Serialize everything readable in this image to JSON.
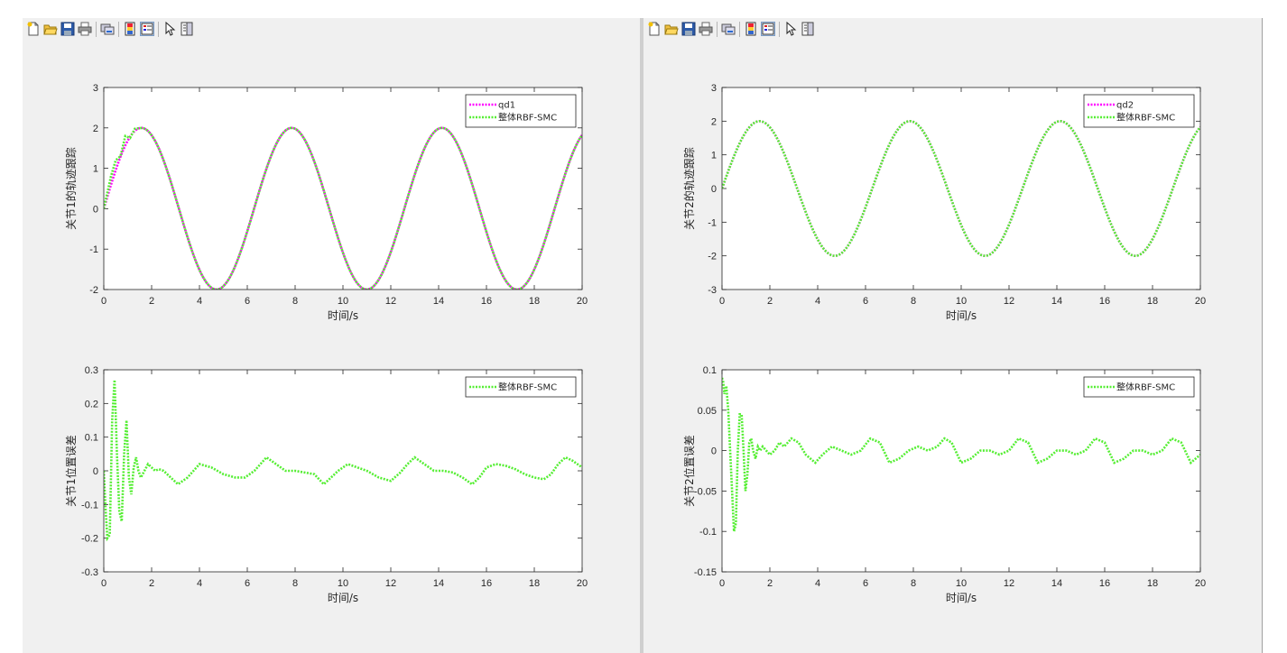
{
  "toolbar": {
    "buttons": [
      "new-figure-icon",
      "open-file-icon",
      "save-icon",
      "print-icon",
      "link-plot-icon",
      "insert-colorbar-icon",
      "insert-legend-icon",
      "edit-plot-pointer-icon",
      "property-inspector-icon"
    ]
  },
  "colors": {
    "qd": "#ff00ff",
    "smc": "#55ee33"
  },
  "chart_data": [
    {
      "type": "line",
      "ylabel": "关节1的轨迹跟踪",
      "xlabel": "时间/s",
      "xlim": [
        0,
        20
      ],
      "ylim": [
        -2,
        3
      ],
      "xticks": [
        "0",
        "2",
        "4",
        "6",
        "8",
        "10",
        "12",
        "14",
        "16",
        "18",
        "20"
      ],
      "yticks": [
        "-2",
        "-1",
        "0",
        "1",
        "2",
        "3"
      ],
      "legend_position": "top-right",
      "series": [
        {
          "name": "qd1",
          "color": "#ff00ff",
          "function": "2*sin(t)"
        },
        {
          "name": "整体RBF-SMC",
          "color": "#55ee33",
          "points": [
            [
              0,
              0.0
            ],
            [
              0.3,
              0.8
            ],
            [
              0.5,
              1.2
            ],
            [
              0.7,
              1.3
            ],
            [
              0.9,
              1.8
            ],
            [
              1.1,
              1.75
            ],
            [
              1.3,
              1.98
            ],
            [
              1.6,
              2.0
            ]
          ],
          "then": "2*sin(t)"
        }
      ]
    },
    {
      "type": "line",
      "ylabel": "关节1位置误差",
      "xlabel": "时间/s",
      "xlim": [
        0,
        20
      ],
      "ylim": [
        -0.3,
        0.3
      ],
      "xticks": [
        "0",
        "2",
        "4",
        "6",
        "8",
        "10",
        "12",
        "14",
        "16",
        "18",
        "20"
      ],
      "yticks": [
        "-0.3",
        "-0.2",
        "-0.1",
        "0",
        "0.1",
        "0.2",
        "0.3"
      ],
      "legend_position": "top-right",
      "series": [
        {
          "name": "整体RBF-SMC",
          "color": "#55ee33",
          "x": [
            0,
            0.08,
            0.15,
            0.25,
            0.35,
            0.45,
            0.55,
            0.65,
            0.75,
            0.85,
            0.95,
            1.05,
            1.15,
            1.25,
            1.35,
            1.45,
            1.55,
            1.7,
            1.85,
            2.0,
            2.15,
            2.3,
            2.5,
            2.8,
            3.1,
            3.5,
            4.0,
            4.5,
            5.0,
            5.5,
            5.9,
            6.3,
            6.8,
            7.2,
            7.6,
            8.0,
            8.4,
            8.8,
            9.2,
            9.5,
            9.8,
            10.2,
            10.6,
            11.0,
            11.5,
            12.0,
            12.4,
            12.7,
            13.0,
            13.4,
            13.8,
            14.2,
            14.6,
            15.0,
            15.4,
            15.7,
            16.0,
            16.4,
            16.8,
            17.2,
            17.6,
            18.0,
            18.4,
            18.7,
            19.0,
            19.3,
            19.6,
            20.0
          ],
          "y": [
            0.0,
            -0.12,
            -0.2,
            -0.19,
            0.15,
            0.27,
            0.05,
            -0.12,
            -0.15,
            0.05,
            0.15,
            -0.02,
            -0.07,
            0.01,
            0.04,
            0.0,
            -0.02,
            0.0,
            0.02,
            0.01,
            0.0,
            0.005,
            0.0,
            -0.02,
            -0.04,
            -0.02,
            0.02,
            0.01,
            -0.01,
            -0.02,
            -0.02,
            0.0,
            0.04,
            0.02,
            0.0,
            0.0,
            -0.005,
            -0.01,
            -0.04,
            -0.02,
            0.0,
            0.02,
            0.01,
            0.0,
            -0.02,
            -0.03,
            -0.005,
            0.02,
            0.04,
            0.02,
            0.0,
            0.0,
            -0.005,
            -0.02,
            -0.04,
            -0.02,
            0.01,
            0.02,
            0.015,
            0.005,
            -0.01,
            -0.02,
            -0.025,
            -0.01,
            0.02,
            0.04,
            0.03,
            0.01
          ]
        }
      ]
    },
    {
      "type": "line",
      "ylabel": "关节2的轨迹跟踪",
      "xlabel": "时间/s",
      "xlim": [
        0,
        20
      ],
      "ylim": [
        -3,
        3
      ],
      "xticks": [
        "0",
        "2",
        "4",
        "6",
        "8",
        "10",
        "12",
        "14",
        "16",
        "18",
        "20"
      ],
      "yticks": [
        "-3",
        "-2",
        "-1",
        "0",
        "1",
        "2",
        "3"
      ],
      "legend_position": "top-right",
      "series": [
        {
          "name": "qd2",
          "color": "#ff00ff",
          "function": "2*sin(t)"
        },
        {
          "name": "整体RBF-SMC",
          "color": "#55ee33",
          "function": "2*sin(t)"
        }
      ]
    },
    {
      "type": "line",
      "ylabel": "关节2位置误差",
      "xlabel": "时间/s",
      "xlim": [
        0,
        20
      ],
      "ylim": [
        -0.15,
        0.1
      ],
      "xticks": [
        "0",
        "2",
        "4",
        "6",
        "8",
        "10",
        "12",
        "14",
        "16",
        "18",
        "20"
      ],
      "yticks": [
        "-0.15",
        "-0.1",
        "-0.05",
        "0",
        "0.05",
        "0.1"
      ],
      "legend_position": "top-right",
      "series": [
        {
          "name": "整体RBF-SMC",
          "color": "#55ee33",
          "x": [
            0,
            0.05,
            0.1,
            0.18,
            0.26,
            0.34,
            0.42,
            0.5,
            0.58,
            0.66,
            0.74,
            0.82,
            0.9,
            0.98,
            1.06,
            1.14,
            1.22,
            1.3,
            1.4,
            1.5,
            1.6,
            1.7,
            1.85,
            2.0,
            2.2,
            2.4,
            2.6,
            2.9,
            3.2,
            3.5,
            3.9,
            4.2,
            4.6,
            5.0,
            5.4,
            5.8,
            6.2,
            6.6,
            7.0,
            7.4,
            7.8,
            8.2,
            8.6,
            9.0,
            9.3,
            9.6,
            10.0,
            10.4,
            10.8,
            11.2,
            11.6,
            12.0,
            12.4,
            12.8,
            13.2,
            13.6,
            14.0,
            14.4,
            14.8,
            15.2,
            15.6,
            16.0,
            16.4,
            16.8,
            17.2,
            17.6,
            18.0,
            18.4,
            18.8,
            19.2,
            19.6,
            20.0
          ],
          "y": [
            0.09,
            0.085,
            0.07,
            0.08,
            0.05,
            0.0,
            -0.05,
            -0.1,
            -0.09,
            0.0,
            0.045,
            0.045,
            0.0,
            -0.05,
            -0.03,
            0.01,
            0.015,
            0.0,
            -0.01,
            0.005,
            0.0,
            0.005,
            0.0,
            -0.005,
            0.0,
            0.01,
            0.005,
            0.015,
            0.01,
            -0.005,
            -0.015,
            -0.005,
            0.005,
            0.0,
            -0.005,
            0.0,
            0.015,
            0.01,
            -0.015,
            -0.01,
            0.0,
            0.005,
            0.0,
            0.005,
            0.015,
            0.01,
            -0.015,
            -0.01,
            0.0,
            0.0,
            -0.005,
            0.0,
            0.015,
            0.01,
            -0.015,
            -0.01,
            0.0,
            0.0,
            -0.005,
            0.0,
            0.015,
            0.01,
            -0.015,
            -0.01,
            0.0,
            0.0,
            -0.005,
            0.0,
            0.015,
            0.01,
            -0.015,
            -0.005
          ]
        }
      ]
    }
  ]
}
